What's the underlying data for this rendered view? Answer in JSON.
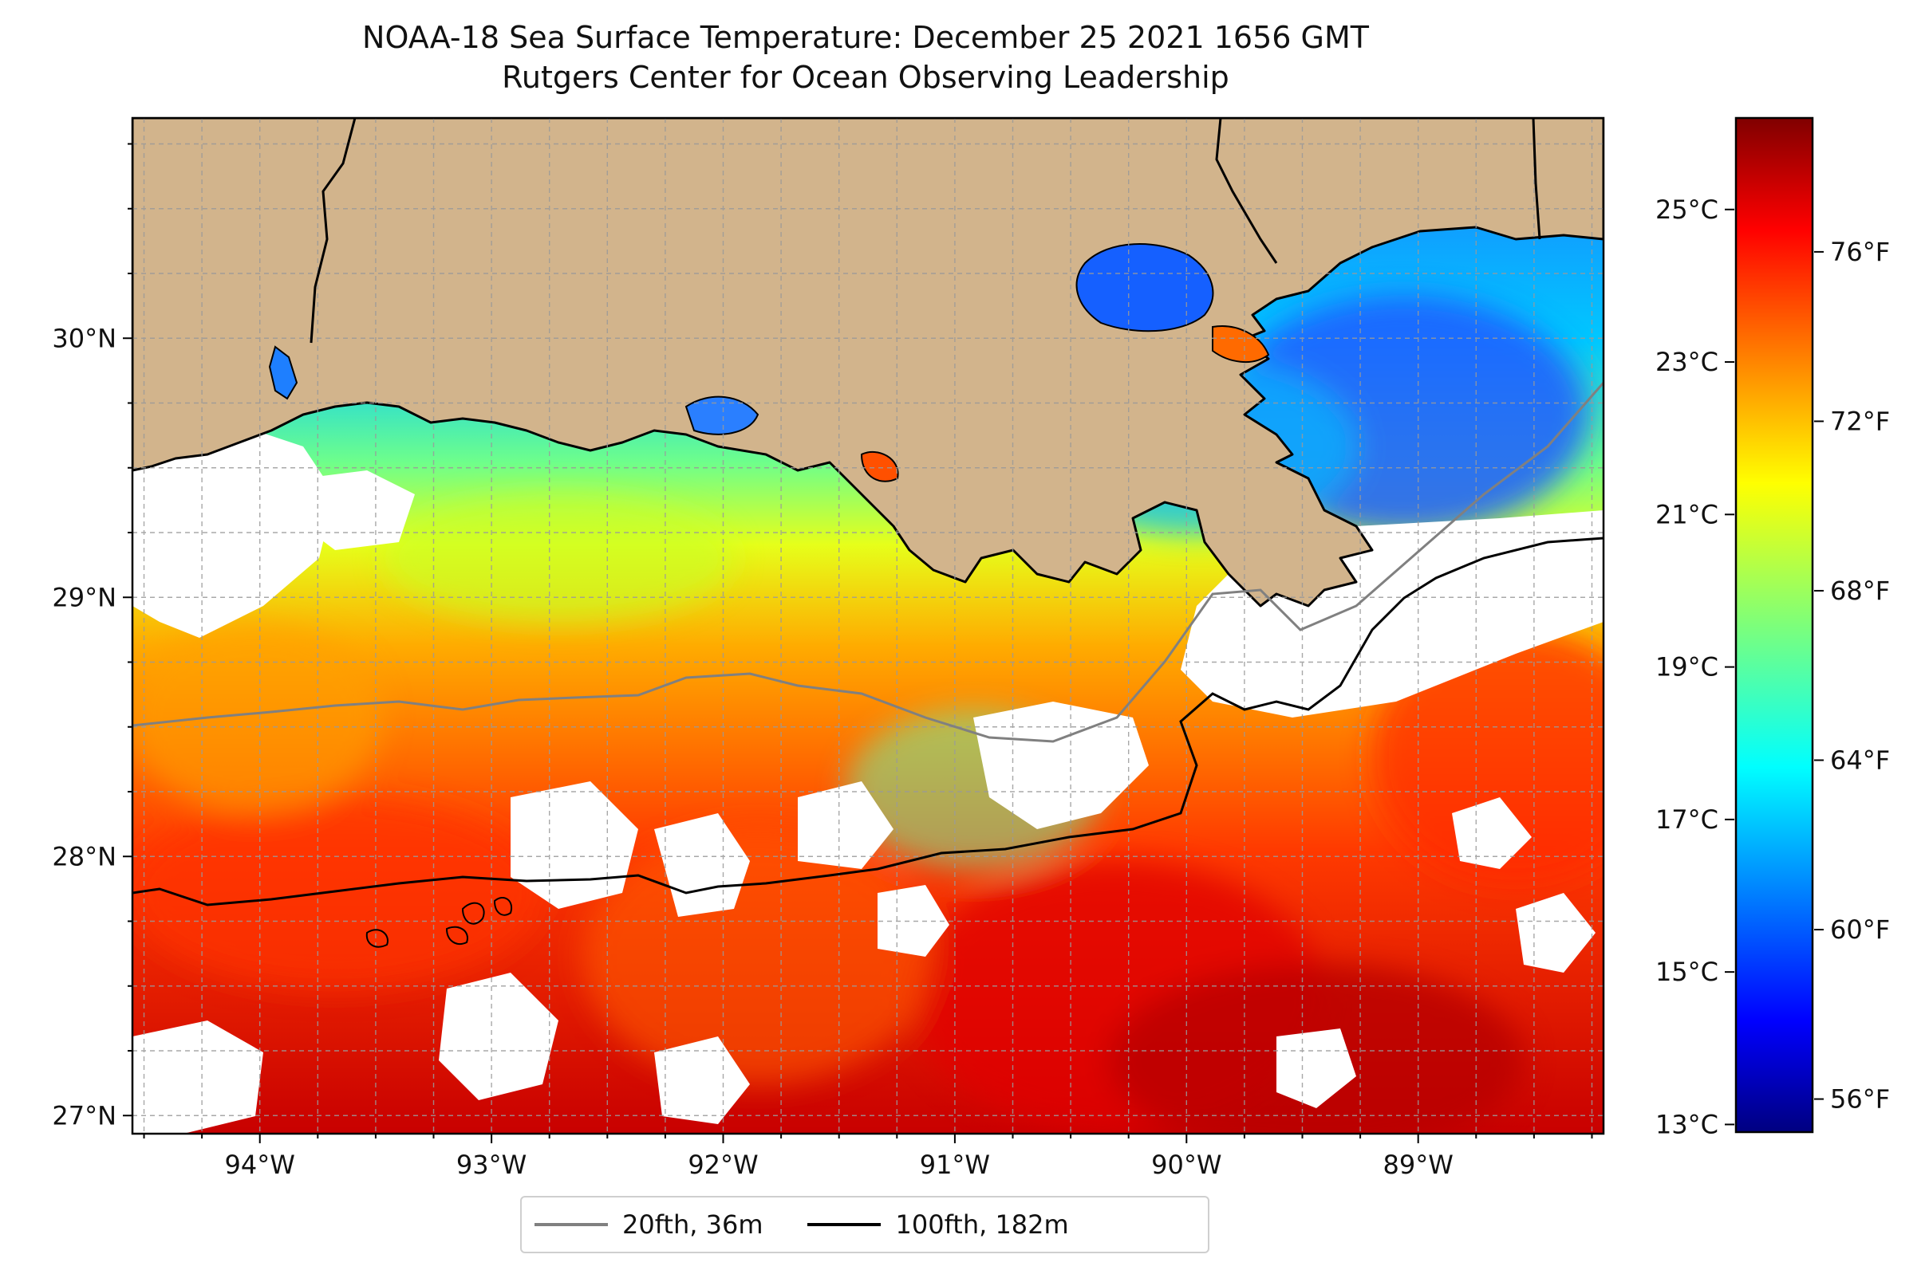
{
  "title": {
    "line1": "NOAA-18 Sea Surface Temperature: December 25 2021 1656 GMT",
    "line2": "Rutgers Center for Ocean Observing Leadership"
  },
  "map": {
    "lon_range": [
      -94.55,
      -88.2
    ],
    "lat_range": [
      26.93,
      30.85
    ],
    "lon_ticks": [
      {
        "value": -94,
        "label": "94°W"
      },
      {
        "value": -93,
        "label": "93°W"
      },
      {
        "value": -92,
        "label": "92°W"
      },
      {
        "value": -91,
        "label": "91°W"
      },
      {
        "value": -90,
        "label": "90°W"
      },
      {
        "value": -89,
        "label": "89°W"
      }
    ],
    "lat_ticks": [
      {
        "value": 27,
        "label": "27°N"
      },
      {
        "value": 28,
        "label": "28°N"
      },
      {
        "value": 29,
        "label": "29°N"
      },
      {
        "value": 30,
        "label": "30°N"
      }
    ],
    "grid": "dashed",
    "land_color": "#d2b48c",
    "no_data_color": "#ffffff"
  },
  "colorbar": {
    "colormap": "jet",
    "range_c": [
      12.9,
      26.2
    ],
    "celsius_ticks": [
      {
        "value": 25,
        "label": "25°C"
      },
      {
        "value": 23,
        "label": "23°C"
      },
      {
        "value": 21,
        "label": "21°C"
      },
      {
        "value": 19,
        "label": "19°C"
      },
      {
        "value": 17,
        "label": "17°C"
      },
      {
        "value": 15,
        "label": "15°C"
      },
      {
        "value": 13,
        "label": "13°C"
      }
    ],
    "fahrenheit_ticks": [
      {
        "value": 76,
        "label": "76°F"
      },
      {
        "value": 72,
        "label": "72°F"
      },
      {
        "value": 68,
        "label": "68°F"
      },
      {
        "value": 64,
        "label": "64°F"
      },
      {
        "value": 60,
        "label": "60°F"
      },
      {
        "value": 56,
        "label": "56°F"
      }
    ]
  },
  "legend": {
    "items": [
      {
        "label": "20fth, 36m",
        "color": "#808080"
      },
      {
        "label": "100fth, 182m",
        "color": "#000000"
      }
    ]
  }
}
